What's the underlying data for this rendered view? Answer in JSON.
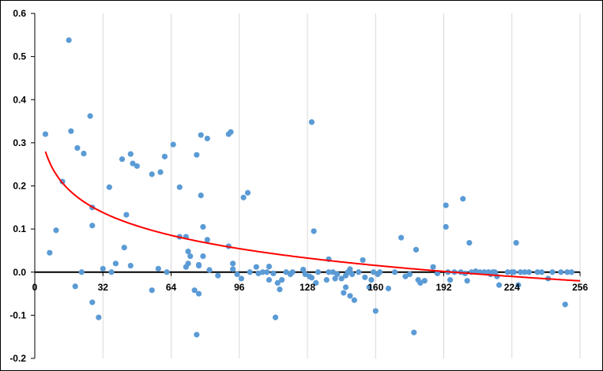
{
  "chart_data": {
    "type": "scatter",
    "title": "",
    "xlabel": "",
    "ylabel": "",
    "xlim": [
      0,
      256
    ],
    "ylim": [
      -0.2,
      0.6
    ],
    "x_ticks": [
      0,
      32,
      64,
      96,
      128,
      160,
      192,
      224,
      256
    ],
    "y_ticks": [
      -0.2,
      -0.1,
      0.0,
      0.1,
      0.2,
      0.3,
      0.4,
      0.5,
      0.6
    ],
    "x_tick_labels": [
      "0",
      "32",
      "64",
      "96",
      "128",
      "160",
      "192",
      "224",
      "256"
    ],
    "y_tick_labels": [
      "-0.2",
      "-0.1",
      "0.0",
      "0.1",
      "0.2",
      "0.3",
      "0.4",
      "0.5",
      "0.6"
    ],
    "grid": "vertical",
    "legend": "none",
    "colors": {
      "points": "#5b9bd5",
      "trendline": "#ff0000",
      "grid": "#d9d9d9",
      "axis": "#000000"
    },
    "series": [
      {
        "type": "scatter",
        "points": [
          [
            5,
            0.32
          ],
          [
            7,
            0.045
          ],
          [
            10,
            0.097
          ],
          [
            13,
            0.21
          ],
          [
            16,
            0.538
          ],
          [
            17,
            0.327
          ],
          [
            19,
            -0.033
          ],
          [
            20,
            0.288
          ],
          [
            22,
            0.0
          ],
          [
            23,
            0.275
          ],
          [
            26,
            0.362
          ],
          [
            27,
            0.108
          ],
          [
            27,
            0.15
          ],
          [
            27,
            -0.07
          ],
          [
            30,
            -0.105
          ],
          [
            32,
            0.008
          ],
          [
            35,
            0.197
          ],
          [
            36,
            0.0
          ],
          [
            38,
            0.02
          ],
          [
            41,
            0.262
          ],
          [
            42,
            0.057
          ],
          [
            43,
            0.133
          ],
          [
            45,
            0.015
          ],
          [
            45,
            0.274
          ],
          [
            46,
            0.252
          ],
          [
            48,
            0.246
          ],
          [
            55,
            0.227
          ],
          [
            55,
            -0.042
          ],
          [
            58,
            0.008
          ],
          [
            59,
            0.232
          ],
          [
            61,
            0.268
          ],
          [
            62,
            0.0
          ],
          [
            65,
            0.296
          ],
          [
            68,
            0.197
          ],
          [
            68,
            0.082
          ],
          [
            71,
            0.082
          ],
          [
            71,
            0.012
          ],
          [
            72,
            0.048
          ],
          [
            72,
            0.02
          ],
          [
            73,
            0.037
          ],
          [
            75,
            -0.042
          ],
          [
            76,
            0.272
          ],
          [
            76,
            -0.145
          ],
          [
            77,
            0.017
          ],
          [
            77,
            0.015
          ],
          [
            77,
            -0.05
          ],
          [
            78,
            0.318
          ],
          [
            78,
            0.178
          ],
          [
            79,
            0.037
          ],
          [
            79,
            0.105
          ],
          [
            81,
            0.31
          ],
          [
            81,
            0.075
          ],
          [
            82,
            0.005
          ],
          [
            86,
            -0.008
          ],
          [
            91,
            0.32
          ],
          [
            91,
            0.06
          ],
          [
            92,
            0.325
          ],
          [
            93,
            0.02
          ],
          [
            93,
            0.007
          ],
          [
            95,
            -0.005
          ],
          [
            97,
            -0.015
          ],
          [
            98,
            0.173
          ],
          [
            100,
            0.184
          ],
          [
            101,
            0.0
          ],
          [
            104,
            0.012
          ],
          [
            105,
            -0.003
          ],
          [
            107,
            0.0
          ],
          [
            109,
            0.0
          ],
          [
            110,
            0.013
          ],
          [
            110,
            -0.018
          ],
          [
            112,
            -0.003
          ],
          [
            113,
            -0.105
          ],
          [
            114,
            -0.025
          ],
          [
            115,
            -0.04
          ],
          [
            116,
            -0.018
          ],
          [
            118,
            0.0
          ],
          [
            120,
            -0.005
          ],
          [
            121,
            0.0
          ],
          [
            126,
            0.006
          ],
          [
            127,
            -0.005
          ],
          [
            129,
            -0.01
          ],
          [
            130,
            0.348
          ],
          [
            130,
            -0.013
          ],
          [
            131,
            0.095
          ],
          [
            132,
            -0.025
          ],
          [
            133,
            0.0
          ],
          [
            137,
            -0.018
          ],
          [
            138,
            0.03
          ],
          [
            138,
            0.0
          ],
          [
            140,
            0.0
          ],
          [
            141,
            -0.015
          ],
          [
            142,
            -0.005
          ],
          [
            144,
            -0.015
          ],
          [
            145,
            -0.048
          ],
          [
            146,
            -0.035
          ],
          [
            146,
            -0.008
          ],
          [
            147,
            0.0
          ],
          [
            148,
            0.007
          ],
          [
            148,
            -0.055
          ],
          [
            149,
            -0.005
          ],
          [
            150,
            -0.065
          ],
          [
            152,
            0.0
          ],
          [
            154,
            0.028
          ],
          [
            155,
            -0.012
          ],
          [
            157,
            -0.035
          ],
          [
            158,
            -0.018
          ],
          [
            159,
            0.0
          ],
          [
            160,
            -0.09
          ],
          [
            161,
            -0.005
          ],
          [
            162,
            0.0
          ],
          [
            166,
            -0.038
          ],
          [
            169,
            0.0
          ],
          [
            172,
            0.08
          ],
          [
            174,
            -0.01
          ],
          [
            176,
            -0.005
          ],
          [
            178,
            -0.14
          ],
          [
            179,
            0.052
          ],
          [
            180,
            -0.018
          ],
          [
            181,
            -0.025
          ],
          [
            183,
            -0.02
          ],
          [
            187,
            0.012
          ],
          [
            189,
            -0.003
          ],
          [
            193,
            0.155
          ],
          [
            193,
            0.105
          ],
          [
            194,
            0.0
          ],
          [
            195,
            -0.018
          ],
          [
            197,
            0.0
          ],
          [
            200,
            0.0
          ],
          [
            201,
            0.17
          ],
          [
            202,
            -0.003
          ],
          [
            203,
            -0.02
          ],
          [
            204,
            0.068
          ],
          [
            205,
            0.0
          ],
          [
            207,
            0.002
          ],
          [
            209,
            0.0
          ],
          [
            211,
            0.0
          ],
          [
            213,
            0.0
          ],
          [
            214,
            -0.005
          ],
          [
            215,
            0.0
          ],
          [
            216,
            0.0
          ],
          [
            217,
            -0.01
          ],
          [
            218,
            -0.03
          ],
          [
            222,
            0.0
          ],
          [
            224,
            0.0
          ],
          [
            225,
            0.0
          ],
          [
            226,
            0.068
          ],
          [
            227,
            -0.03
          ],
          [
            228,
            0.0
          ],
          [
            230,
            0.0
          ],
          [
            232,
            0.0
          ],
          [
            236,
            0.0
          ],
          [
            238,
            0.0
          ],
          [
            241,
            -0.015
          ],
          [
            243,
            0.0
          ],
          [
            247,
            0.0
          ],
          [
            249,
            -0.075
          ],
          [
            250,
            0.0
          ],
          [
            252,
            0.0
          ]
        ]
      },
      {
        "type": "trendline",
        "fit": "logarithmic",
        "equation": {
          "a": 0.4023,
          "b": -0.0762
        },
        "x_range": [
          5,
          256
        ]
      }
    ]
  }
}
